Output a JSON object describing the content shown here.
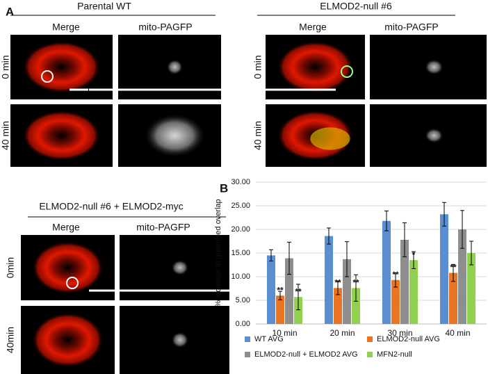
{
  "panel_a": {
    "label": "A",
    "groups": [
      {
        "title": "Parental WT",
        "columns": [
          "Merge",
          "mito-PAGFP"
        ],
        "rows": [
          "0 min",
          "40 min"
        ]
      },
      {
        "title": "ELMOD2-null #6",
        "columns": [
          "Merge",
          "mito-PAGFP"
        ],
        "rows": [
          "0 min",
          "40 min"
        ]
      },
      {
        "title": "ELMOD2-null #6 + ELMOD2-myc",
        "columns": [
          "Merge",
          "mito-PAGFP"
        ],
        "rows": [
          "0min",
          "40min"
        ]
      }
    ]
  },
  "panel_b": {
    "label": "B"
  },
  "chart_data": {
    "type": "bar",
    "y_label": "% increase in green/red overlap",
    "categories": [
      "10 min",
      "20 min",
      "30 min",
      "40 min"
    ],
    "ylim": [
      0,
      30
    ],
    "yticks": [
      {
        "value": 0,
        "label": "0.00"
      },
      {
        "value": 5,
        "label": "5.00"
      },
      {
        "value": 10,
        "label": "10.00"
      },
      {
        "value": 15,
        "label": "15.00"
      },
      {
        "value": 20,
        "label": "20.00"
      },
      {
        "value": 25,
        "label": "25.00"
      },
      {
        "value": 30,
        "label": "30.00"
      }
    ],
    "grid": true,
    "legend": "bottom",
    "series": [
      {
        "name": "WT AVG",
        "color": "#5b8ed1",
        "values": [
          14.5,
          18.6,
          21.8,
          23.2
        ],
        "errors": [
          1.2,
          1.7,
          2.1,
          2.5
        ],
        "stars": [
          null,
          null,
          null,
          null
        ]
      },
      {
        "name": "ELMOD2-null AVG",
        "color": "#ea7421",
        "values": [
          6.0,
          7.6,
          9.3,
          10.8
        ],
        "errors": [
          0.9,
          1.4,
          1.5,
          1.8
        ],
        "stars": [
          "**",
          "**",
          "**",
          "**"
        ]
      },
      {
        "name": "ELMOD2-null + ELMOD2 AVG",
        "color": "#8e8e8e",
        "values": [
          13.9,
          13.7,
          17.8,
          20.0
        ],
        "errors": [
          3.4,
          3.7,
          3.6,
          4.0
        ],
        "stars": [
          null,
          null,
          null,
          null
        ]
      },
      {
        "name": "MFN2-null",
        "color": "#92d050",
        "values": [
          5.7,
          7.6,
          13.5,
          15.0
        ],
        "errors": [
          2.7,
          2.8,
          1.8,
          2.5
        ],
        "stars": [
          "**",
          "**",
          "*",
          null
        ]
      }
    ]
  }
}
